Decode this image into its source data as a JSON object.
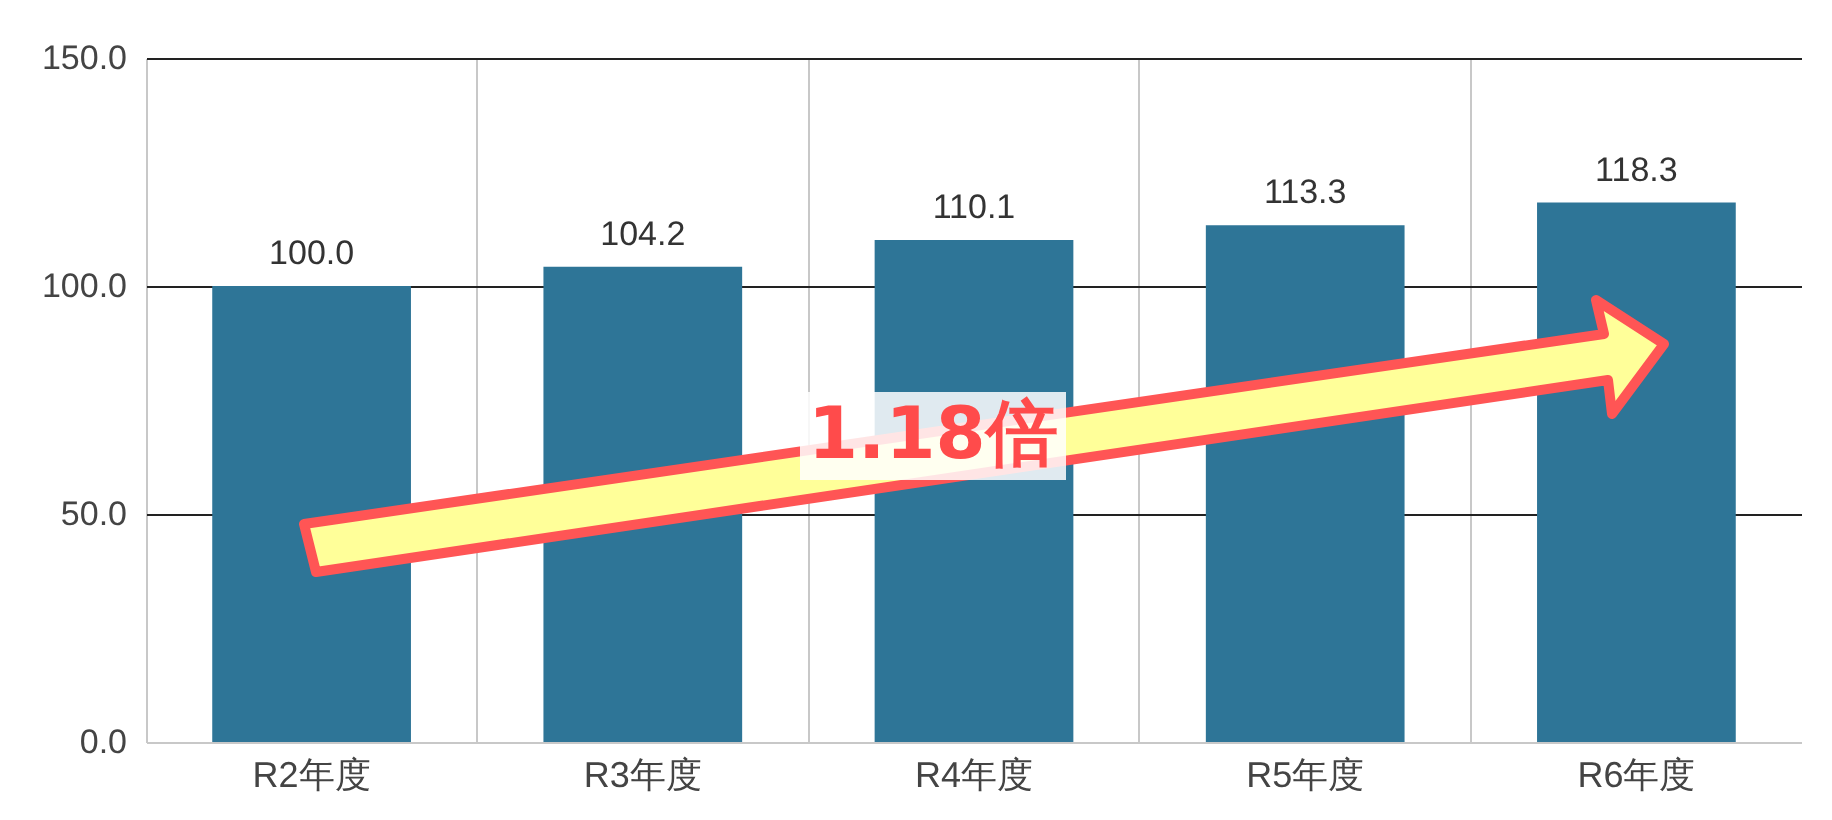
{
  "chart_data": {
    "type": "bar",
    "categories": [
      "R2年度",
      "R3年度",
      "R4年度",
      "R5年度",
      "R6年度"
    ],
    "values": [
      100.0,
      104.2,
      110.1,
      113.3,
      118.3
    ],
    "color": "#2e7597",
    "ylim": [
      0,
      150
    ],
    "yticks": [
      {
        "value": 0,
        "label": "0.0"
      },
      {
        "value": 50,
        "label": "50.0"
      },
      {
        "value": 100,
        "label": "100.0"
      },
      {
        "value": 150,
        "label": "150.0"
      }
    ],
    "value_labels": [
      "100.0",
      "104.2",
      "110.1",
      "113.3",
      "118.3"
    ],
    "grid": true,
    "annotations": [
      "1.18倍"
    ]
  }
}
